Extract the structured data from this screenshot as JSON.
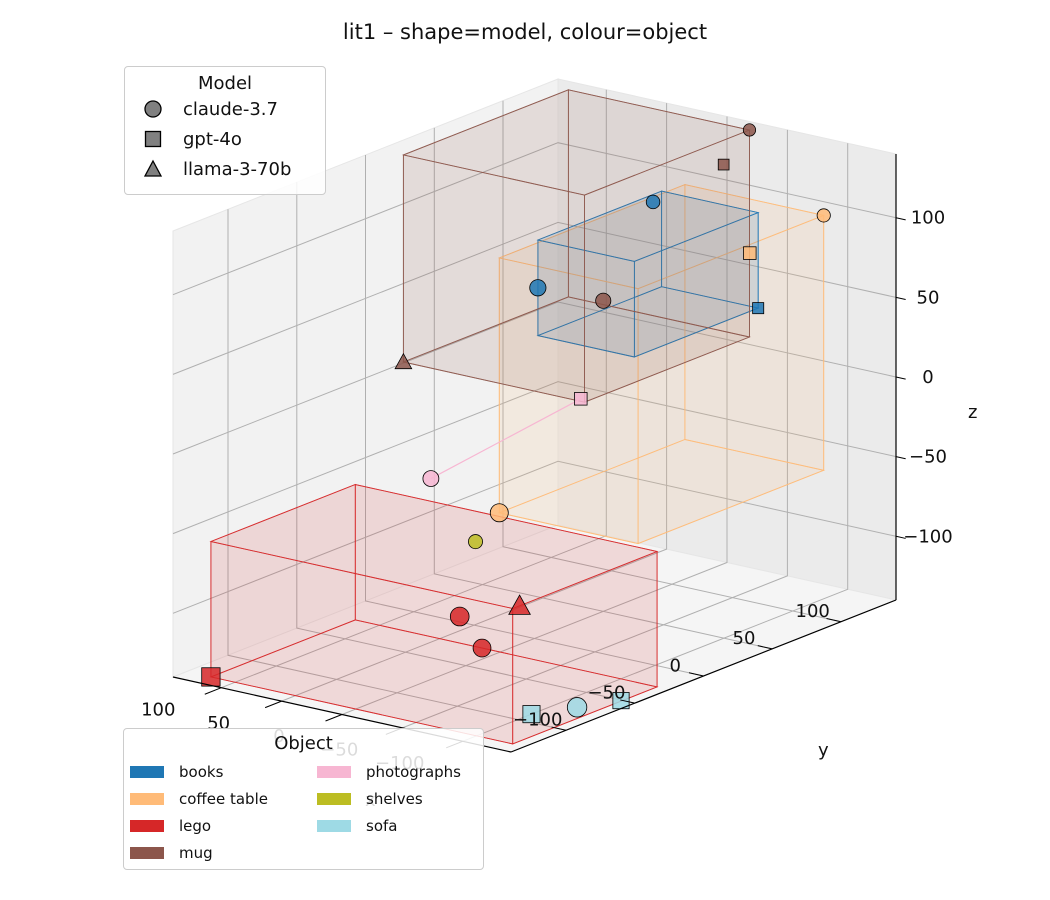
{
  "chart_data": {
    "type": "scatter",
    "dimensions": 3,
    "title": "lit1 – shape=model, colour=object",
    "xlabel": "x",
    "ylabel": "y",
    "zlabel": "z",
    "x_ticks": [
      "−100",
      "−50",
      "0",
      "50",
      "100"
    ],
    "y_ticks": [
      "−100",
      "−50",
      "0",
      "50",
      "100"
    ],
    "z_ticks": [
      "−100",
      "−50",
      "0",
      "50",
      "100"
    ],
    "xlim": [
      -140,
      140
    ],
    "ylim": [
      -140,
      140
    ],
    "zlim": [
      -140,
      140
    ],
    "grid": true,
    "legends": {
      "model": {
        "title": "Model",
        "placement": "top-left",
        "entries": [
          {
            "label": "claude-3.7",
            "marker": "circle"
          },
          {
            "label": "gpt-4o",
            "marker": "square"
          },
          {
            "label": "llama-3-70b",
            "marker": "triangle"
          }
        ]
      },
      "object": {
        "title": "Object",
        "placement": "bottom-left",
        "entries": [
          {
            "label": "books",
            "color": "#1f77b4"
          },
          {
            "label": "coffee table",
            "color": "#ffbb78"
          },
          {
            "label": "lego",
            "color": "#d62728"
          },
          {
            "label": "mug",
            "color": "#8c564b"
          },
          {
            "label": "photographs",
            "color": "#f7b6d2"
          },
          {
            "label": "shelves",
            "color": "#bcbd22"
          },
          {
            "label": "sofa",
            "color": "#9edae5"
          }
        ]
      }
    },
    "series": [
      {
        "name": "books",
        "color": "#1f77b4",
        "points": [
          {
            "model": "claude-3.7",
            "x": 10,
            "y": 95,
            "z": 100
          },
          {
            "model": "gpt-4o",
            "x": -60,
            "y": 110,
            "z": 40
          },
          {
            "model": "claude-3.7",
            "x": 20,
            "y": 20,
            "z": 70
          }
        ]
      },
      {
        "name": "coffee table",
        "color": "#ffbb78",
        "points": [
          {
            "model": "claude-3.7",
            "x": -120,
            "y": 105,
            "z": 110
          },
          {
            "model": "gpt-4o",
            "x": -110,
            "y": 60,
            "z": 100
          },
          {
            "model": "claude-3.7",
            "x": -5,
            "y": -30,
            "z": -50
          }
        ]
      },
      {
        "name": "lego",
        "color": "#d62728",
        "points": [
          {
            "model": "llama-3-70b",
            "x": -130,
            "y": -125,
            "z": -55
          },
          {
            "model": "claude-3.7",
            "x": 5,
            "y": -50,
            "z": -110
          },
          {
            "model": "claude-3.7",
            "x": 15,
            "y": -25,
            "z": -140
          },
          {
            "model": "gpt-4o",
            "x": 120,
            "y": -130,
            "z": -140
          }
        ]
      },
      {
        "name": "mug",
        "color": "#8c564b",
        "points": [
          {
            "model": "claude-3.7",
            "x": -30,
            "y": 130,
            "z": 140
          },
          {
            "model": "gpt-4o",
            "x": -20,
            "y": 120,
            "z": 120
          },
          {
            "model": "claude-3.7",
            "x": 0,
            "y": 50,
            "z": 55
          },
          {
            "model": "llama-3-70b",
            "x": 120,
            "y": 10,
            "z": 10
          }
        ]
      },
      {
        "name": "photographs",
        "color": "#f7b6d2",
        "points": [
          {
            "model": "gpt-4o",
            "x": 30,
            "y": 60,
            "z": -15
          },
          {
            "model": "claude-3.7",
            "x": 120,
            "y": 30,
            "z": -70
          }
        ]
      },
      {
        "name": "shelves",
        "color": "#bcbd22",
        "points": [
          {
            "model": "claude-3.7",
            "x": 140,
            "y": 80,
            "z": -130
          }
        ]
      },
      {
        "name": "sofa",
        "color": "#9edae5",
        "points": [
          {
            "model": "gpt-4o",
            "x": -140,
            "y": -60,
            "z": -135
          },
          {
            "model": "claude-3.7",
            "x": -115,
            "y": -70,
            "z": -140
          },
          {
            "model": "gpt-4o",
            "x": -100,
            "y": -90,
            "z": -140
          }
        ]
      }
    ]
  }
}
